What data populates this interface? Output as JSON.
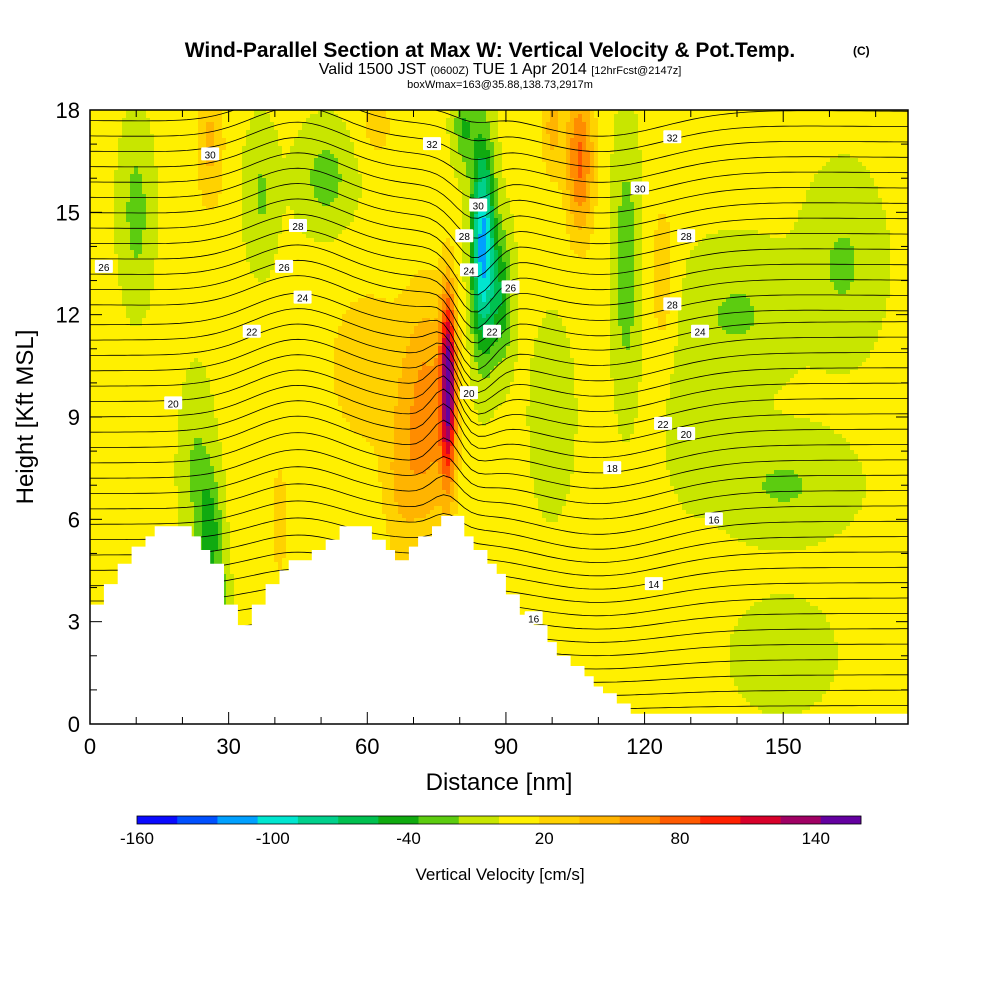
{
  "chart_data": {
    "type": "heatmap",
    "title": "Wind-Parallel Section at Max W: Vertical Velocity & Pot.Temp.",
    "title_mark": "(C)",
    "subtitle_main": "Valid 1500 JST",
    "subtitle_z": "(0600Z)",
    "subtitle_date": "TUE 1 Apr 2014",
    "subtitle_fcst": "[12hrFcst@2147z]",
    "boxwmax": "boxWmax=163@35.88,138.73,2917m",
    "xlabel": "Distance [nm]",
    "ylabel": "Height [Kft MSL]",
    "xlim": [
      0,
      177
    ],
    "ylim": [
      0,
      18
    ],
    "x_ticks": [
      "0",
      "30",
      "60",
      "90",
      "120",
      "150"
    ],
    "y_ticks": [
      "0",
      "3",
      "6",
      "9",
      "12",
      "15",
      "18"
    ],
    "colorbar": {
      "label": "Vertical Velocity [cm/s]",
      "tick_labels": [
        "-160",
        "-100",
        "-40",
        "20",
        "80",
        "140"
      ],
      "tick_values": [
        -160,
        -100,
        -40,
        20,
        80,
        140
      ],
      "range": [
        -160,
        160
      ],
      "colors": [
        "#0a0aff",
        "#0050ff",
        "#00a0ff",
        "#00e6d0",
        "#00d08c",
        "#00c050",
        "#10aa10",
        "#5ccc10",
        "#c8e600",
        "#fff000",
        "#ffd200",
        "#ffb400",
        "#ff8c00",
        "#ff5a00",
        "#ff2000",
        "#d8002a",
        "#a00064",
        "#6400a0"
      ]
    },
    "contour_field": "Potential Temperature",
    "theta_labels": [
      {
        "text": "32",
        "x": 74,
        "y": 17.0
      },
      {
        "text": "32",
        "x": 126,
        "y": 17.2
      },
      {
        "text": "30",
        "x": 26,
        "y": 16.7
      },
      {
        "text": "30",
        "x": 84,
        "y": 15.2
      },
      {
        "text": "30",
        "x": 119,
        "y": 15.7
      },
      {
        "text": "28",
        "x": 45,
        "y": 14.6
      },
      {
        "text": "28",
        "x": 81,
        "y": 14.3
      },
      {
        "text": "28",
        "x": 129,
        "y": 14.3
      },
      {
        "text": "28",
        "x": 126,
        "y": 12.3
      },
      {
        "text": "26",
        "x": 3,
        "y": 13.4
      },
      {
        "text": "26",
        "x": 42,
        "y": 13.4
      },
      {
        "text": "26",
        "x": 91,
        "y": 12.8
      },
      {
        "text": "24",
        "x": 46,
        "y": 12.5
      },
      {
        "text": "24",
        "x": 82,
        "y": 13.3
      },
      {
        "text": "24",
        "x": 132,
        "y": 11.5
      },
      {
        "text": "22",
        "x": 35,
        "y": 11.5
      },
      {
        "text": "22",
        "x": 87,
        "y": 11.5
      },
      {
        "text": "22",
        "x": 124,
        "y": 8.8
      },
      {
        "text": "20",
        "x": 18,
        "y": 9.4
      },
      {
        "text": "20",
        "x": 82,
        "y": 9.7
      },
      {
        "text": "20",
        "x": 129,
        "y": 8.5
      },
      {
        "text": "18",
        "x": 113,
        "y": 7.5
      },
      {
        "text": "16",
        "x": 135,
        "y": 6.0
      },
      {
        "text": "14",
        "x": 122,
        "y": 4.1
      },
      {
        "text": "16",
        "x": 96,
        "y": 3.1
      }
    ]
  }
}
